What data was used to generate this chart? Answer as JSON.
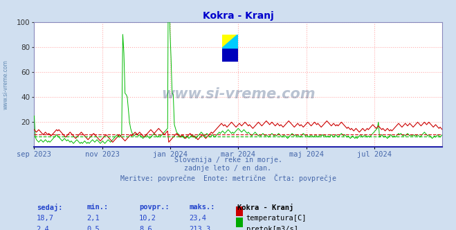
{
  "title": "Kokra - Kranj",
  "title_color": "#0000cc",
  "bg_color": "#d0dff0",
  "plot_bg_color": "#ffffff",
  "grid_color": "#ffaaaa",
  "grid_style": ":",
  "watermark_text": "www.si-vreme.com",
  "watermark_color": "#1a3a6a",
  "watermark_alpha": 0.3,
  "subtitle_lines": [
    "Slovenija / reke in morje.",
    "zadnje leto / en dan.",
    "Meritve: povprečne  Enote: metrične  Črta: povprečje"
  ],
  "subtitle_color": "#4466aa",
  "footer_labels": [
    "sedaj:",
    "min.:",
    "povpr.:",
    "maks.:"
  ],
  "footer_rows": [
    {
      "sedaj": "18,7",
      "min": "2,1",
      "povpr": "10,2",
      "maks": "23,4",
      "color": "#cc0000",
      "label": "temperatura[C]"
    },
    {
      "sedaj": "2,4",
      "min": "0,5",
      "povpr": "8,6",
      "maks": "213,3",
      "color": "#00aa00",
      "label": "pretok[m3/s]"
    }
  ],
  "station_label": "Kokra - Kranj",
  "x_tick_labels": [
    "sep 2023",
    "nov 2023",
    "jan 2024",
    "mar 2024",
    "maj 2024",
    "jul 2024"
  ],
  "x_tick_positions": [
    0.0,
    0.167,
    0.333,
    0.5,
    0.667,
    0.833
  ],
  "ylim": [
    0,
    100
  ],
  "yticks": [
    20,
    40,
    60,
    80,
    100
  ],
  "temp_color": "#cc0000",
  "flow_color": "#00bb00",
  "temp_avg_value": 10.2,
  "flow_avg_value": 8.6,
  "n_points": 365,
  "temp_data": [
    14,
    13,
    12,
    13,
    14,
    13,
    12,
    11,
    10,
    11,
    12,
    11,
    10,
    11,
    10,
    9,
    10,
    11,
    12,
    13,
    14,
    13,
    14,
    13,
    12,
    11,
    10,
    9,
    8,
    9,
    10,
    11,
    12,
    11,
    10,
    9,
    8,
    7,
    8,
    9,
    10,
    11,
    12,
    11,
    10,
    9,
    8,
    7,
    6,
    7,
    8,
    9,
    10,
    11,
    10,
    9,
    8,
    7,
    6,
    5,
    6,
    7,
    8,
    9,
    10,
    9,
    8,
    7,
    6,
    5,
    4,
    5,
    6,
    7,
    8,
    9,
    10,
    9,
    8,
    7,
    6,
    5,
    6,
    7,
    8,
    9,
    10,
    9,
    10,
    11,
    12,
    11,
    10,
    11,
    12,
    11,
    10,
    9,
    8,
    9,
    10,
    11,
    12,
    13,
    14,
    13,
    12,
    11,
    12,
    13,
    14,
    15,
    14,
    13,
    12,
    11,
    10,
    11,
    12,
    13,
    4,
    5,
    6,
    7,
    8,
    9,
    10,
    11,
    10,
    9,
    8,
    9,
    10,
    9,
    8,
    7,
    8,
    9,
    10,
    11,
    10,
    9,
    8,
    9,
    8,
    7,
    6,
    7,
    8,
    9,
    10,
    9,
    8,
    7,
    8,
    9,
    10,
    11,
    12,
    11,
    12,
    13,
    14,
    15,
    16,
    17,
    18,
    19,
    18,
    17,
    18,
    17,
    16,
    17,
    18,
    19,
    20,
    19,
    18,
    17,
    16,
    17,
    18,
    19,
    18,
    17,
    18,
    19,
    20,
    19,
    18,
    17,
    18,
    17,
    16,
    15,
    16,
    17,
    18,
    19,
    20,
    19,
    18,
    17,
    18,
    19,
    20,
    21,
    20,
    19,
    18,
    19,
    20,
    19,
    18,
    17,
    18,
    19,
    18,
    17,
    18,
    17,
    16,
    17,
    18,
    19,
    20,
    21,
    20,
    19,
    18,
    17,
    16,
    17,
    18,
    19,
    18,
    17,
    18,
    17,
    16,
    17,
    18,
    19,
    20,
    19,
    18,
    17,
    18,
    19,
    20,
    19,
    18,
    19,
    18,
    17,
    16,
    17,
    18,
    19,
    20,
    21,
    20,
    19,
    18,
    17,
    18,
    19,
    18,
    17,
    18,
    17,
    18,
    19,
    20,
    19,
    18,
    17,
    16,
    15,
    16,
    15,
    14,
    15,
    14,
    13,
    14,
    15,
    14,
    13,
    12,
    13,
    14,
    15,
    14,
    13,
    14,
    15,
    14,
    15,
    16,
    17,
    18,
    17,
    16,
    15,
    16,
    17,
    16,
    15,
    14,
    15,
    14,
    13,
    14,
    15,
    14,
    13,
    14,
    13,
    14,
    15,
    16,
    17,
    18,
    19,
    18,
    17,
    16,
    17,
    18,
    19,
    18,
    17,
    18,
    19,
    18,
    17,
    16,
    17,
    18,
    19,
    20,
    19,
    18,
    17,
    18,
    19,
    20,
    19,
    18,
    19,
    20,
    19,
    18,
    17,
    16,
    17,
    18,
    17,
    16,
    15,
    16,
    15,
    14,
    13
  ],
  "flow_data": [
    25,
    8,
    6,
    5,
    4,
    5,
    6,
    5,
    4,
    5,
    6,
    5,
    4,
    5,
    4,
    5,
    6,
    7,
    8,
    9,
    10,
    9,
    8,
    7,
    6,
    5,
    6,
    7,
    6,
    5,
    6,
    5,
    4,
    5,
    4,
    3,
    4,
    5,
    6,
    5,
    4,
    3,
    4,
    3,
    4,
    5,
    4,
    3,
    4,
    3,
    4,
    5,
    6,
    5,
    4,
    5,
    6,
    5,
    4,
    3,
    4,
    5,
    4,
    3,
    4,
    5,
    6,
    5,
    4,
    5,
    6,
    7,
    8,
    9,
    10,
    9,
    8,
    9,
    10,
    90,
    75,
    43,
    42,
    40,
    30,
    20,
    15,
    12,
    10,
    9,
    10,
    11,
    10,
    9,
    10,
    9,
    8,
    7,
    8,
    9,
    10,
    9,
    8,
    7,
    8,
    9,
    10,
    11,
    10,
    9,
    8,
    9,
    10,
    9,
    10,
    11,
    12,
    13,
    14,
    15,
    213,
    95,
    72,
    43,
    42,
    18,
    15,
    12,
    11,
    10,
    9,
    8,
    9,
    8,
    7,
    8,
    9,
    8,
    7,
    8,
    9,
    10,
    9,
    8,
    7,
    8,
    9,
    10,
    11,
    12,
    11,
    10,
    9,
    10,
    11,
    10,
    9,
    8,
    9,
    10,
    9,
    8,
    9,
    10,
    11,
    12,
    11,
    12,
    13,
    12,
    11,
    12,
    13,
    14,
    13,
    12,
    11,
    12,
    11,
    12,
    13,
    14,
    15,
    14,
    13,
    12,
    13,
    14,
    13,
    12,
    11,
    12,
    11,
    10,
    9,
    10,
    11,
    12,
    11,
    10,
    9,
    10,
    9,
    10,
    11,
    10,
    9,
    10,
    9,
    8,
    9,
    10,
    11,
    10,
    9,
    10,
    9,
    10,
    11,
    10,
    9,
    8,
    9,
    10,
    9,
    8,
    7,
    8,
    9,
    10,
    11,
    10,
    9,
    10,
    9,
    10,
    9,
    8,
    9,
    10,
    11,
    10,
    9,
    10,
    9,
    8,
    9,
    10,
    9,
    8,
    9,
    10,
    9,
    8,
    9,
    10,
    9,
    10,
    9,
    10,
    9,
    8,
    9,
    8,
    9,
    10,
    9,
    8,
    9,
    10,
    9,
    8,
    9,
    10,
    11,
    10,
    9,
    10,
    9,
    8,
    9,
    8,
    7,
    8,
    9,
    8,
    7,
    8,
    7,
    8,
    9,
    10,
    9,
    8,
    9,
    10,
    9,
    8,
    9,
    8,
    9,
    10,
    11,
    12,
    13,
    14,
    15,
    20,
    8,
    9,
    10,
    9,
    8,
    9,
    8,
    7,
    8,
    9,
    10,
    9,
    8,
    9,
    8,
    9,
    10,
    11,
    10,
    11,
    10,
    9,
    10,
    9,
    10,
    11,
    10,
    9,
    10,
    9,
    10,
    9,
    10,
    9,
    10,
    9,
    8,
    9,
    10,
    11,
    12,
    11,
    10,
    9,
    10,
    9,
    8,
    7,
    8,
    9,
    8,
    9,
    10,
    9,
    8,
    9,
    10,
    11
  ]
}
